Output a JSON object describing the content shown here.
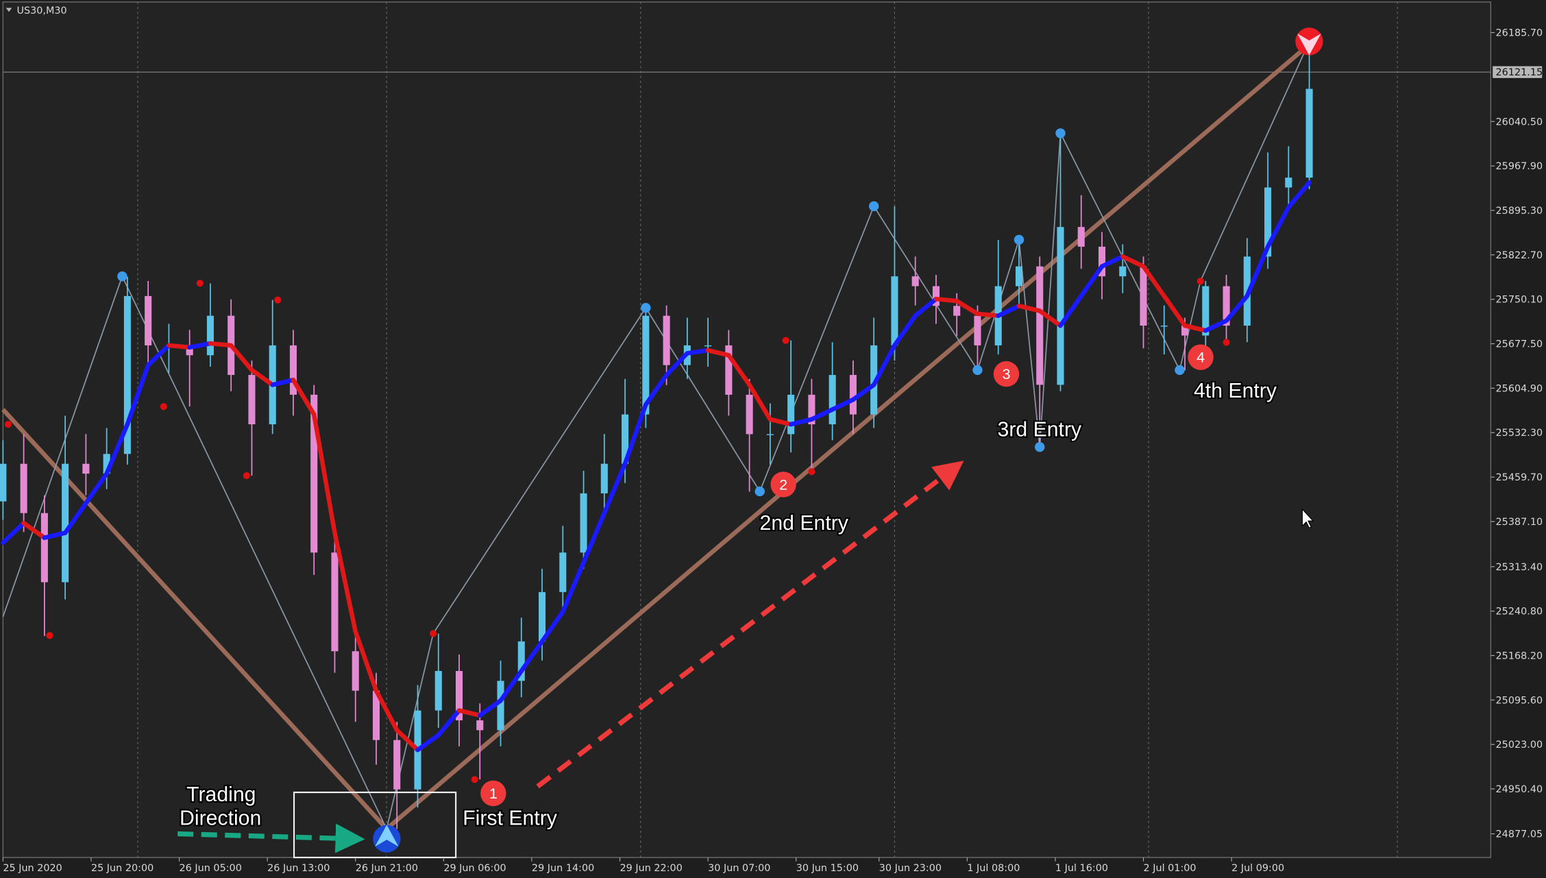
{
  "chart_data": {
    "type": "candlestick",
    "symbol": "US30,M30",
    "xlim": [
      0,
      287
    ],
    "ylim": [
      24838.4,
      26235.7
    ],
    "xticks": [
      {
        "value": 0,
        "label": "25 Jun 2020"
      },
      {
        "value": 17,
        "label": "25 Jun 20:00"
      },
      {
        "value": 34,
        "label": "26 Jun 05:00"
      },
      {
        "value": 51,
        "label": "26 Jun 13:00"
      },
      {
        "value": 68,
        "label": "26 Jun 21:00"
      },
      {
        "value": 85,
        "label": "29 Jun 06:00"
      },
      {
        "value": 102,
        "label": "29 Jun 14:00"
      },
      {
        "value": 119,
        "label": "29 Jun 22:00"
      },
      {
        "value": 136,
        "label": "30 Jun 07:00"
      },
      {
        "value": 153,
        "label": "30 Jun 15:00"
      },
      {
        "value": 169,
        "label": "30 Jun 23:00"
      },
      {
        "value": 186,
        "label": "1 Jul 08:00"
      },
      {
        "value": 203,
        "label": "1 Jul 16:00"
      },
      {
        "value": 220,
        "label": "2 Jul 01:00"
      },
      {
        "value": 237,
        "label": "2 Jul 09:00"
      }
    ],
    "yticks": [
      {
        "value": 26185.7,
        "label": "26185.70"
      },
      {
        "value": 26040.5,
        "label": "26040.50"
      },
      {
        "value": 25967.9,
        "label": "25967.90"
      },
      {
        "value": 25895.3,
        "label": "25895.30"
      },
      {
        "value": 25822.7,
        "label": "25822.70"
      },
      {
        "value": 25750.1,
        "label": "25750.10"
      },
      {
        "value": 25677.5,
        "label": "25677.50"
      },
      {
        "value": 25604.9,
        "label": "25604.90"
      },
      {
        "value": 25532.3,
        "label": "25532.30"
      },
      {
        "value": 25459.7,
        "label": "25459.70"
      },
      {
        "value": 25387.1,
        "label": "25387.10"
      },
      {
        "value": 25313.4,
        "label": "25313.40"
      },
      {
        "value": 25240.8,
        "label": "25240.80"
      },
      {
        "value": 25168.2,
        "label": "25168.20"
      },
      {
        "value": 25095.6,
        "label": "25095.60"
      },
      {
        "value": 25023.0,
        "label": "25023.00"
      },
      {
        "value": 24950.4,
        "label": "24950.40"
      },
      24877.05
    ],
    "separators": [
      26,
      74,
      123,
      172,
      221,
      269
    ],
    "current_price": {
      "value": 26121.15,
      "label": "26121.15"
    },
    "up_color": "#5cc3e6",
    "down_color": "#e38bd2",
    "x": [
      0,
      4,
      8,
      12,
      16,
      20,
      24,
      28,
      32,
      36,
      40,
      44,
      48,
      52,
      56,
      60,
      64,
      68,
      72,
      76,
      80,
      84,
      88,
      92,
      96,
      100,
      104,
      108,
      112,
      116,
      120,
      124,
      128,
      132,
      136,
      140,
      144,
      148,
      152,
      156,
      160,
      164,
      168,
      172,
      176,
      180,
      184,
      188,
      192,
      196,
      200,
      204,
      208,
      212,
      216,
      220,
      224,
      228,
      232,
      236,
      240,
      244,
      248,
      252
    ],
    "open": [
      25420.0,
      25481.4,
      25400.9,
      25288.0,
      25481.4,
      25465.3,
      25497.5,
      25755.4,
      25674.8,
      25674.8,
      25658.7,
      25723.2,
      25626.5,
      25545.9,
      25674.8,
      25594.2,
      25336.4,
      25175.2,
      25110.8,
      25030.2,
      24949.6,
      25078.5,
      25143.0,
      25062.4,
      25046.3,
      25126.9,
      25191.3,
      25271.9,
      25336.4,
      25433.1,
      25481.4,
      25562.0,
      25723.2,
      25642.6,
      25674.8,
      25674.8,
      25594.2,
      25529.8,
      25529.8,
      25594.2,
      25545.9,
      25626.5,
      25562.0,
      25674.8,
      25787.6,
      25771.5,
      25739.3,
      25723.2,
      25674.8,
      25771.5,
      25803.8,
      25610.4,
      25868.2,
      25836.0,
      25787.6,
      25803.8,
      25707.1,
      25707.1,
      25690.9,
      25771.5,
      25707.1,
      25819.9,
      25932.7,
      25948.8
    ],
    "high": [
      25520,
      25530,
      25430,
      25560,
      25530,
      25540,
      25787,
      25780,
      25710,
      25700,
      25776,
      25750,
      25650,
      25749,
      25700,
      25610,
      25360,
      25210,
      25140,
      25060,
      25120,
      25204,
      25170,
      25090,
      25160,
      25230,
      25310,
      25380,
      25470,
      25530,
      25620,
      25736,
      25740,
      25720,
      25720,
      25700,
      25620,
      25580,
      25683,
      25620,
      25680,
      25650,
      25720,
      25902,
      25820,
      25790,
      25760,
      25740,
      25847,
      25840,
      25820,
      26021,
      25920,
      25860,
      25840,
      25820,
      25740,
      25720,
      25780,
      25790,
      25850,
      25990,
      26000,
      26171
    ],
    "low": [
      25390,
      25370,
      25200,
      25260,
      25430,
      25440,
      25480,
      25640,
      25630,
      25575,
      25640,
      25600,
      25462,
      25530,
      25560,
      25300,
      25140,
      25060,
      24990,
      24885,
      24920,
      25050,
      25020,
      24966,
      25020,
      25100,
      25160,
      25240,
      25310,
      25400,
      25450,
      25540,
      25610,
      25620,
      25640,
      25560,
      25436,
      25480,
      25500,
      25468,
      25520,
      25530,
      25540,
      25650,
      25740,
      25710,
      25690,
      25634,
      25660,
      25740,
      25508,
      25600,
      25800,
      25750,
      25760,
      25670,
      25660,
      25634,
      25670,
      25680,
      25680,
      25800,
      25900,
      25930
    ],
    "close": [
      25481.4,
      25400.9,
      25288.0,
      25481.4,
      25465.3,
      25497.5,
      25755.4,
      25674.8,
      25674.8,
      25658.7,
      25723.2,
      25626.5,
      25545.9,
      25674.8,
      25594.2,
      25336.4,
      25175.2,
      25110.8,
      25030.2,
      24949.6,
      25078.5,
      25143.0,
      25062.4,
      25046.3,
      25126.9,
      25191.3,
      25271.9,
      25336.4,
      25433.1,
      25481.4,
      25562.0,
      25723.2,
      25642.6,
      25674.8,
      25674.8,
      25594.2,
      25529.8,
      25529.8,
      25594.2,
      25545.9,
      25626.5,
      25562.0,
      25674.8,
      25787.6,
      25771.5,
      25739.3,
      25723.2,
      25674.8,
      25771.5,
      25803.8,
      25610.4,
      25868.2,
      25836.0,
      25787.6,
      25803.8,
      25707.1,
      25707.1,
      25690.9,
      25771.5,
      25707.1,
      25819.9,
      25932.7,
      25948.8,
      26093.8
    ],
    "ma": {
      "rise_color": "#1a1aff",
      "fall_color": "#e01818",
      "values": [
        25352.5,
        25384.7,
        25360.6,
        25368.6,
        25417.0,
        25465.3,
        25545.9,
        25642.6,
        25674.8,
        25671.6,
        25678.0,
        25674.8,
        25634.5,
        25610.4,
        25618.4,
        25562.0,
        25368.6,
        25207.5,
        25110.8,
        25046.3,
        25014.1,
        25038.2,
        25078.5,
        25070.5,
        25094.6,
        25143.0,
        25191.3,
        25239.7,
        25320.3,
        25400.9,
        25481.4,
        25578.1,
        25626.5,
        25661.9,
        25666.8,
        25658.7,
        25610.4,
        25554.0,
        25545.9,
        25554.0,
        25570.1,
        25586.2,
        25610.4,
        25674.8,
        25723.2,
        25750.6,
        25747.3,
        25726.4,
        25723.2,
        25739.3,
        25731.2,
        25707.1,
        25755.4,
        25803.8,
        25819.9,
        25803.8,
        25755.4,
        25707.1,
        25699.0,
        25715.1,
        25755.4,
        25836.0,
        25900.4,
        25940.7
      ]
    },
    "zigzag": {
      "color": "#8a96a6",
      "x": [
        0,
        23,
        74,
        83,
        124,
        146,
        168,
        188,
        196,
        200,
        204,
        227,
        231,
        252
      ],
      "values": [
        25231.6,
        25787.6,
        24885.1,
        25204.2,
        25736.1,
        25436.3,
        25902.1,
        25634.5,
        25847.3,
        25508.8,
        26021.3,
        25634.5,
        25779.6,
        26171.2
      ]
    },
    "swing_high_dots": {
      "color": "#e01010",
      "x": [
        1,
        9,
        31,
        38,
        47,
        53,
        83,
        91,
        151,
        156,
        231,
        236
      ],
      "values": [
        25545.9,
        25201.0,
        25574.9,
        25776.4,
        25462.1,
        25749.0,
        25204.2,
        24965.7,
        25682.9,
        25468.5,
        25779.6,
        25679.7
      ]
    },
    "swing_low_dots": {
      "color": "#3d9be9",
      "x": [
        23,
        124,
        146,
        168,
        188,
        196,
        200,
        204,
        227
      ],
      "values": [
        25787.6,
        25736.1,
        25436.3,
        25902.1,
        25634.5,
        25847.3,
        25508.8,
        26021.3,
        25634.5
      ]
    },
    "trend_lines": {
      "color": "#9c6a58",
      "x": [
        0,
        74,
        252
      ],
      "values": [
        25570.1,
        24885.1,
        26166.4
      ]
    },
    "annotations": {
      "trading_direction": [
        "Trading",
        "Direction"
      ],
      "entries": [
        "First Entry",
        "2nd Entry",
        "3rd Entry",
        "4th Entry"
      ],
      "markers": [
        "1",
        "2",
        "3",
        "4"
      ]
    }
  }
}
